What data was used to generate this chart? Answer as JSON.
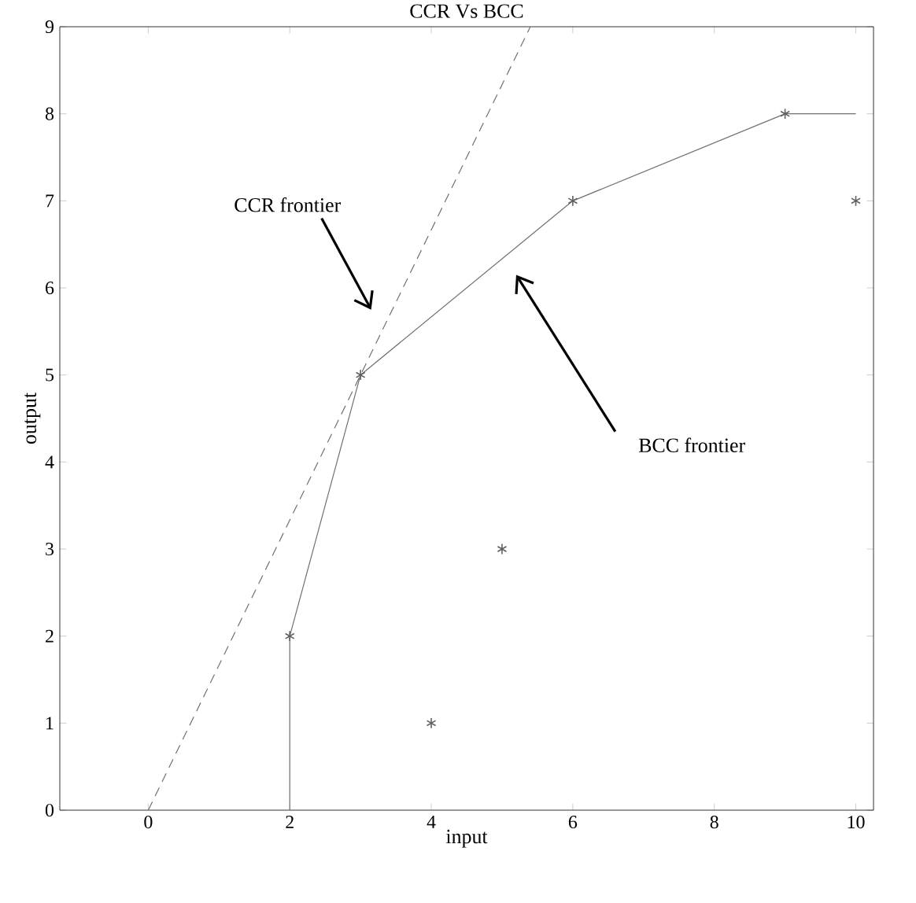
{
  "chart_data": {
    "type": "scatter",
    "title": "CCR Vs BCC",
    "xlabel": "input",
    "ylabel": "output",
    "xlim": [
      -1.25,
      10.25
    ],
    "ylim": [
      0,
      9
    ],
    "xticks": [
      0,
      2,
      4,
      6,
      8,
      10
    ],
    "yticks": [
      0,
      1,
      2,
      3,
      4,
      5,
      6,
      7,
      8,
      9
    ],
    "grid": false,
    "series": [
      {
        "color": "#606060",
        "marker": "cross",
        "x": [
          2,
          3,
          4,
          5,
          6,
          9,
          10
        ],
        "values": [
          2,
          5,
          1,
          3,
          7,
          8,
          7
        ]
      },
      {
        "type": "line",
        "color": "#707070",
        "marker": "none",
        "line_style": "solid",
        "x": [
          2,
          2,
          3,
          6,
          9,
          10
        ],
        "values": [
          0,
          2,
          5,
          7,
          8,
          8
        ]
      },
      {
        "type": "line",
        "color": "#707070",
        "marker": "none",
        "line_style": "dashed",
        "x": [
          0,
          5.4
        ],
        "values": [
          0,
          9
        ]
      }
    ],
    "annotations": [
      "CCR frontier",
      "BCC frontier"
    ]
  }
}
